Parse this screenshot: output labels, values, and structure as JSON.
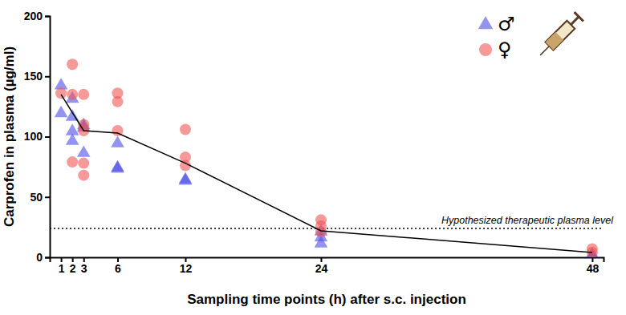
{
  "chart_data": {
    "type": "scatter",
    "x_label": "Sampling time points (h) after s.c. injection",
    "y_label": "Carprofen in plasma (µg/ml)",
    "xlim": [
      0,
      49
    ],
    "xticks": [
      1,
      2,
      3,
      6,
      12,
      24,
      48
    ],
    "ylim": [
      0,
      200
    ],
    "yticks": [
      0,
      50,
      100,
      150,
      200
    ],
    "grid": false,
    "legend": "top-right",
    "series": [
      {
        "name": "♂",
        "color": "#4b4be6",
        "marker": "triangle",
        "x": [
          1,
          1,
          2,
          2,
          2,
          2,
          3,
          3,
          3,
          6,
          6,
          6,
          12,
          12,
          24,
          24,
          24,
          48,
          48,
          48
        ],
        "values": [
          143,
          120,
          132,
          117,
          105,
          97,
          110,
          108,
          87,
          95,
          75,
          74,
          65,
          64,
          22,
          17,
          12,
          3,
          1,
          2
        ]
      },
      {
        "name": "♀",
        "color": "#f05555",
        "marker": "circle",
        "x": [
          1,
          2,
          2,
          2,
          3,
          3,
          3,
          3,
          3,
          6,
          6,
          6,
          12,
          12,
          12,
          24,
          24,
          24,
          48,
          48
        ],
        "values": [
          136,
          160,
          135,
          79,
          135,
          110,
          105,
          78,
          68,
          136,
          129,
          105,
          106,
          83,
          76,
          31,
          26,
          21,
          7,
          4
        ]
      },
      {
        "type": "line",
        "color": "#000000",
        "line_style": "solid",
        "x": [
          1,
          3,
          6,
          12,
          24,
          48
        ],
        "values": [
          135,
          105,
          103,
          78,
          22,
          4
        ]
      }
    ],
    "annotations": [
      {
        "text": "Hypothesized therapeutic plasma level",
        "y": 24,
        "line_style": "dotted"
      }
    ]
  }
}
